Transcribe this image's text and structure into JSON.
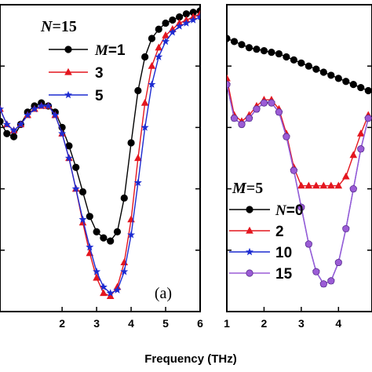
{
  "chart_data": [
    {
      "type": "line",
      "panel_label": "(a)",
      "xlim": [
        0.2,
        6
      ],
      "ylim": [
        0,
        1
      ],
      "x_ticks": [
        "2",
        "3",
        "4",
        "5",
        "6"
      ],
      "legend_title_var": "N",
      "legend_title_value": "=15",
      "legend_var": "M",
      "legend_placement": "top-center",
      "series": [
        {
          "name": "=1",
          "color": "#000000",
          "marker": "circle",
          "x": [
            0.2,
            0.4,
            0.6,
            0.8,
            1.0,
            1.2,
            1.4,
            1.6,
            1.8,
            2.0,
            2.2,
            2.4,
            2.6,
            2.8,
            3.0,
            3.2,
            3.4,
            3.6,
            3.8,
            4.0,
            4.2,
            4.4,
            4.6,
            4.8,
            5.0,
            5.2,
            5.4,
            5.6,
            5.8,
            6.0
          ],
          "y": [
            0.62,
            0.58,
            0.57,
            0.61,
            0.65,
            0.67,
            0.68,
            0.67,
            0.65,
            0.6,
            0.54,
            0.47,
            0.39,
            0.31,
            0.26,
            0.24,
            0.23,
            0.26,
            0.37,
            0.55,
            0.72,
            0.83,
            0.89,
            0.92,
            0.94,
            0.95,
            0.96,
            0.97,
            0.975,
            0.98
          ]
        },
        {
          "name": "3",
          "color": "#e4161f",
          "marker": "triangle",
          "x": [
            0.2,
            0.4,
            0.6,
            0.8,
            1.0,
            1.2,
            1.4,
            1.6,
            1.8,
            2.0,
            2.2,
            2.4,
            2.6,
            2.8,
            3.0,
            3.2,
            3.4,
            3.6,
            3.8,
            4.0,
            4.2,
            4.4,
            4.6,
            4.8,
            5.0,
            5.2,
            5.4,
            5.6,
            5.8,
            6.0
          ],
          "y": [
            0.66,
            0.61,
            0.59,
            0.61,
            0.64,
            0.66,
            0.67,
            0.67,
            0.64,
            0.58,
            0.5,
            0.4,
            0.29,
            0.19,
            0.11,
            0.06,
            0.05,
            0.08,
            0.16,
            0.3,
            0.5,
            0.68,
            0.8,
            0.86,
            0.9,
            0.92,
            0.94,
            0.95,
            0.96,
            0.97
          ]
        },
        {
          "name": "5",
          "color": "#1c2bd1",
          "marker": "star",
          "x": [
            0.2,
            0.4,
            0.6,
            0.8,
            1.0,
            1.2,
            1.4,
            1.6,
            1.8,
            2.0,
            2.2,
            2.4,
            2.6,
            2.8,
            3.0,
            3.2,
            3.4,
            3.6,
            3.8,
            4.0,
            4.2,
            4.4,
            4.6,
            4.8,
            5.0,
            5.2,
            5.4,
            5.6,
            5.8,
            6.0
          ],
          "y": [
            0.66,
            0.61,
            0.59,
            0.61,
            0.64,
            0.66,
            0.67,
            0.67,
            0.64,
            0.58,
            0.5,
            0.4,
            0.3,
            0.21,
            0.13,
            0.08,
            0.06,
            0.07,
            0.13,
            0.25,
            0.42,
            0.6,
            0.74,
            0.83,
            0.88,
            0.91,
            0.93,
            0.94,
            0.95,
            0.96
          ]
        }
      ]
    },
    {
      "type": "line",
      "panel_label": "",
      "xlim": [
        1,
        4.9
      ],
      "ylim": [
        0,
        1
      ],
      "x_ticks": [
        "1",
        "2",
        "3",
        "4"
      ],
      "legend_title_var": "M",
      "legend_title_value": "=5",
      "legend_var": "N",
      "legend_placement": "bottom-left",
      "series": [
        {
          "name": "=0",
          "color": "#000000",
          "marker": "circle",
          "x": [
            1.0,
            1.2,
            1.4,
            1.6,
            1.8,
            2.0,
            2.2,
            2.4,
            2.6,
            2.8,
            3.0,
            3.2,
            3.4,
            3.6,
            3.8,
            4.0,
            4.2,
            4.4,
            4.6,
            4.8
          ],
          "y": [
            0.89,
            0.88,
            0.87,
            0.86,
            0.855,
            0.85,
            0.845,
            0.84,
            0.83,
            0.82,
            0.81,
            0.8,
            0.79,
            0.78,
            0.77,
            0.76,
            0.75,
            0.74,
            0.73,
            0.72
          ]
        },
        {
          "name": "2",
          "color": "#e4161f",
          "marker": "triangle",
          "x": [
            1.0,
            1.2,
            1.4,
            1.6,
            1.8,
            2.0,
            2.2,
            2.4,
            2.6,
            2.8,
            3.0,
            3.2,
            3.4,
            3.6,
            3.8,
            4.0,
            4.2,
            4.4,
            4.6,
            4.8
          ],
          "y": [
            0.76,
            0.64,
            0.62,
            0.64,
            0.67,
            0.69,
            0.69,
            0.66,
            0.58,
            0.47,
            0.41,
            0.41,
            0.41,
            0.41,
            0.41,
            0.41,
            0.44,
            0.51,
            0.58,
            0.64
          ]
        },
        {
          "name": "10",
          "color": "#1c2bd1",
          "marker": "star",
          "x": [
            1.0,
            1.2,
            1.4,
            1.6,
            1.8,
            2.0,
            2.2,
            2.4,
            2.6,
            2.8,
            3.0,
            3.2,
            3.4,
            3.6,
            3.8,
            4.0,
            4.2,
            4.4,
            4.6,
            4.8
          ],
          "y": [
            0.74,
            0.63,
            0.61,
            0.63,
            0.66,
            0.68,
            0.68,
            0.65,
            0.57,
            0.46,
            0.34,
            0.22,
            0.13,
            0.09,
            0.1,
            0.16,
            0.27,
            0.4,
            0.53,
            0.63
          ]
        },
        {
          "name": "15",
          "color": "#9b5cd6",
          "marker": "circle",
          "x": [
            1.0,
            1.2,
            1.4,
            1.6,
            1.8,
            2.0,
            2.2,
            2.4,
            2.6,
            2.8,
            3.0,
            3.2,
            3.4,
            3.6,
            3.8,
            4.0,
            4.2,
            4.4,
            4.6,
            4.8
          ],
          "y": [
            0.74,
            0.63,
            0.61,
            0.63,
            0.66,
            0.68,
            0.68,
            0.65,
            0.57,
            0.46,
            0.34,
            0.22,
            0.13,
            0.09,
            0.1,
            0.16,
            0.27,
            0.4,
            0.53,
            0.63
          ]
        }
      ]
    }
  ],
  "xlabel": "Frequency (THz)"
}
